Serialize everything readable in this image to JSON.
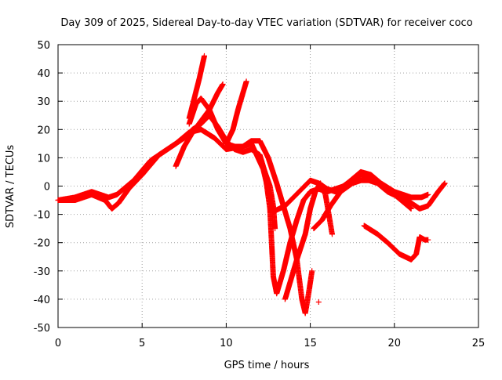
{
  "chart_data": {
    "type": "scatter",
    "title": "Day 309 of 2025, Sidereal Day-to-day VTEC variation (SDTVAR) for receiver coco",
    "xlabel": "GPS time / hours",
    "ylabel": "SDTVAR / TECUs",
    "xlim": [
      0,
      25
    ],
    "ylim": [
      -50,
      50
    ],
    "x_ticks": [
      "0",
      "5",
      "10",
      "15",
      "20",
      "25"
    ],
    "y_ticks": [
      "50",
      "40",
      "30",
      "20",
      "10",
      "0",
      "-10",
      "-20",
      "-30",
      "-40",
      "-50"
    ],
    "grid": true,
    "marker": "+",
    "color": "#ff0000",
    "series": [
      {
        "name": "track-1",
        "points": [
          [
            0,
            -5
          ],
          [
            1,
            -5
          ],
          [
            2,
            -3
          ],
          [
            2.8,
            -5
          ],
          [
            3.2,
            -8
          ],
          [
            3.6,
            -6
          ],
          [
            4.2,
            -1
          ],
          [
            5,
            4
          ],
          [
            6,
            11
          ],
          [
            7,
            15
          ],
          [
            7.8,
            19
          ],
          [
            8.5,
            20
          ],
          [
            9.3,
            17
          ],
          [
            10,
            13
          ],
          [
            11,
            14
          ],
          [
            11.5,
            15
          ],
          [
            12.2,
            6
          ],
          [
            12.8,
            -9
          ],
          [
            13.5,
            -7
          ],
          [
            14.5,
            -1
          ],
          [
            15,
            2
          ],
          [
            15.5,
            1
          ],
          [
            16,
            -1
          ],
          [
            16.5,
            -2
          ],
          [
            17.2,
            1
          ],
          [
            18,
            4
          ],
          [
            18.5,
            3
          ],
          [
            19,
            1
          ],
          [
            19.6,
            -2
          ],
          [
            20.3,
            -4
          ],
          [
            21,
            -6
          ],
          [
            21.5,
            -8
          ],
          [
            22,
            -7
          ],
          [
            22.6,
            -2
          ],
          [
            23,
            1
          ]
        ]
      },
      {
        "name": "track-2",
        "points": [
          [
            0,
            -5
          ],
          [
            1,
            -4
          ],
          [
            2,
            -2
          ],
          [
            3,
            -4
          ],
          [
            3.5,
            -3
          ],
          [
            4.5,
            2
          ],
          [
            5.5,
            9
          ],
          [
            6.5,
            13
          ],
          [
            7.5,
            17
          ],
          [
            8,
            20
          ],
          [
            8.5,
            22
          ],
          [
            9,
            25
          ],
          [
            9.5,
            21
          ],
          [
            10,
            16
          ],
          [
            10.5,
            13
          ],
          [
            11,
            12
          ],
          [
            11.5,
            13
          ],
          [
            12,
            11
          ],
          [
            12.3,
            5
          ],
          [
            12.6,
            -8
          ],
          [
            12.8,
            -32
          ],
          [
            13,
            -38
          ],
          [
            13.4,
            -30
          ],
          [
            13.8,
            -20
          ],
          [
            14.2,
            -12
          ],
          [
            14.6,
            -5
          ],
          [
            15,
            -2
          ],
          [
            15.5,
            -1
          ],
          [
            16,
            -2
          ],
          [
            16.5,
            -1
          ],
          [
            17,
            0
          ],
          [
            17.6,
            3
          ],
          [
            18,
            5
          ],
          [
            18.6,
            4
          ],
          [
            19.2,
            1
          ],
          [
            20,
            -2
          ],
          [
            21,
            -4
          ],
          [
            21.6,
            -4
          ],
          [
            22,
            -3
          ]
        ]
      },
      {
        "name": "track-3",
        "points": [
          [
            7,
            7
          ],
          [
            7.5,
            14
          ],
          [
            8,
            19
          ],
          [
            8.5,
            23
          ],
          [
            9,
            27
          ],
          [
            9.5,
            33
          ],
          [
            9.8,
            36
          ]
        ]
      },
      {
        "name": "track-4",
        "points": [
          [
            7.8,
            22
          ],
          [
            8.2,
            29
          ],
          [
            8.5,
            31
          ],
          [
            9,
            27
          ],
          [
            9.5,
            20
          ],
          [
            10,
            15
          ],
          [
            10.5,
            14
          ],
          [
            11,
            14
          ],
          [
            11.5,
            16
          ],
          [
            12,
            16
          ],
          [
            12.5,
            10
          ],
          [
            13,
            1
          ],
          [
            13.4,
            -7
          ],
          [
            13.8,
            -15
          ],
          [
            14.2,
            -26
          ],
          [
            14.5,
            -40
          ],
          [
            14.7,
            -45
          ],
          [
            14.9,
            -38
          ],
          [
            15.1,
            -30
          ]
        ]
      },
      {
        "name": "track-5",
        "points": [
          [
            10,
            15
          ],
          [
            10.4,
            20
          ],
          [
            10.7,
            27
          ],
          [
            11,
            33
          ],
          [
            11.2,
            37
          ]
        ]
      },
      {
        "name": "track-6",
        "points": [
          [
            7.8,
            24
          ],
          [
            8.1,
            31
          ],
          [
            8.4,
            38
          ],
          [
            8.7,
            46
          ]
        ]
      },
      {
        "name": "track-7",
        "points": [
          [
            12,
            10
          ],
          [
            12.3,
            5
          ],
          [
            12.6,
            0
          ],
          [
            12.8,
            -7
          ],
          [
            12.9,
            -15
          ]
        ]
      },
      {
        "name": "track-8",
        "points": [
          [
            13.5,
            -40
          ],
          [
            14.2,
            -26
          ],
          [
            14.7,
            -17
          ],
          [
            15,
            -8
          ],
          [
            15.3,
            -2
          ],
          [
            15.6,
            1
          ],
          [
            15.9,
            -3
          ],
          [
            16.1,
            -10
          ],
          [
            16.3,
            -17
          ]
        ]
      },
      {
        "name": "track-9",
        "points": [
          [
            18.2,
            -14
          ],
          [
            19,
            -17
          ],
          [
            19.6,
            -20
          ],
          [
            20.3,
            -24
          ],
          [
            21,
            -26
          ],
          [
            21.3,
            -24
          ],
          [
            21.5,
            -18
          ],
          [
            21.8,
            -19
          ],
          [
            22,
            -19
          ]
        ]
      },
      {
        "name": "track-10",
        "points": [
          [
            15.2,
            -15
          ],
          [
            15.7,
            -12
          ],
          [
            16.2,
            -7
          ],
          [
            16.8,
            -2
          ],
          [
            17.5,
            1
          ],
          [
            18,
            2
          ],
          [
            18.5,
            2
          ],
          [
            19,
            1
          ],
          [
            19.4,
            -1
          ],
          [
            19.8,
            -2
          ],
          [
            20.2,
            -4
          ],
          [
            20.6,
            -6
          ],
          [
            21,
            -8
          ]
        ]
      },
      {
        "name": "outlier",
        "points": [
          [
            15.5,
            -41
          ]
        ]
      }
    ]
  }
}
